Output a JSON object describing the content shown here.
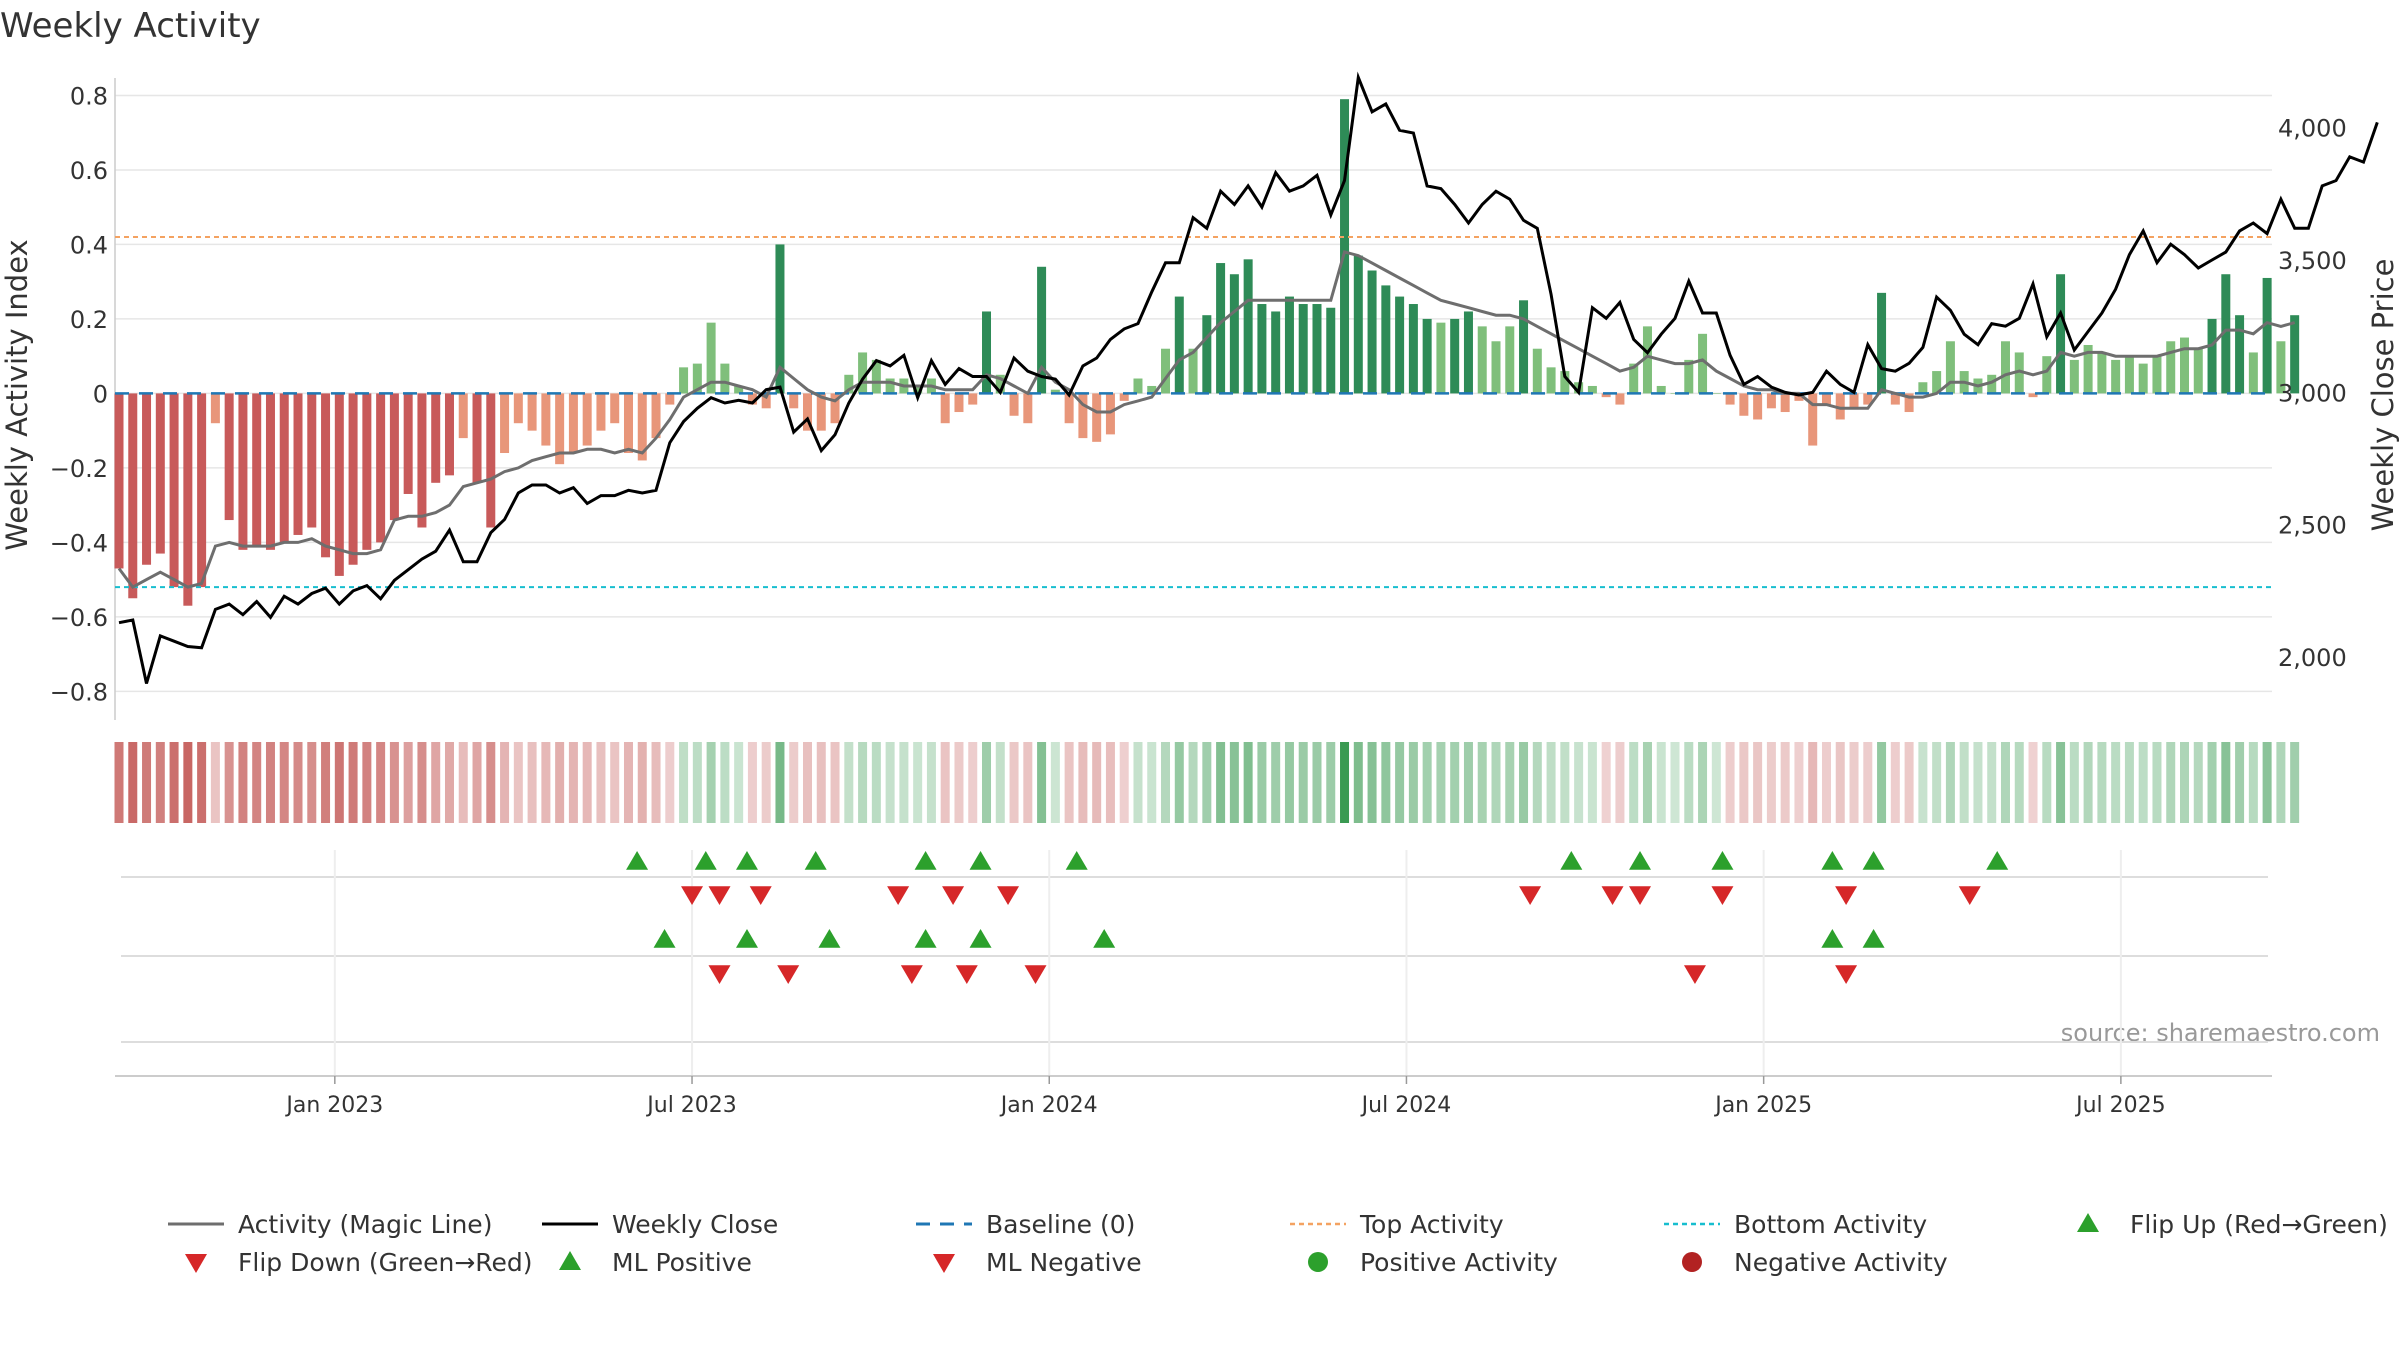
{
  "chart_data": {
    "type": "bar",
    "title": "Weekly Activity",
    "ylabel": "Weekly Activity Index",
    "y2label": "Weekly Close Price",
    "ylim": [
      -0.85,
      0.82
    ],
    "y2lim": [
      1800,
      4150
    ],
    "yticks": [
      0.8,
      0.6,
      0.4,
      0.2,
      0,
      -0.2,
      -0.4,
      -0.6,
      -0.8
    ],
    "ytick_labels": [
      "0.8",
      "0.6",
      "0.4",
      "0.2",
      "0",
      "−0.2",
      "−0.4",
      "−0.6",
      "−0.8"
    ],
    "y2ticks": [
      4000,
      3500,
      3000,
      2500,
      2000
    ],
    "y2tick_labels": [
      "4,000",
      "3,500",
      "3,000",
      "2,500",
      "2,000"
    ],
    "x_range_weeks": [
      0,
      157
    ],
    "x_ticks": [
      {
        "label": "Jan 2023",
        "week": 16
      },
      {
        "label": "Jul 2023",
        "week": 42
      },
      {
        "label": "Jan 2024",
        "week": 68
      },
      {
        "label": "Jul 2024",
        "week": 94
      },
      {
        "label": "Jan 2025",
        "week": 120
      },
      {
        "label": "Jul 2025",
        "week": 146
      }
    ],
    "top_activity": 0.42,
    "bottom_activity": -0.52,
    "baseline": 0,
    "series": [
      {
        "name": "Weekly Activity Index",
        "kind": "bar",
        "values": [
          -0.47,
          -0.55,
          -0.46,
          -0.43,
          -0.52,
          -0.57,
          -0.52,
          -0.08,
          -0.34,
          -0.42,
          -0.41,
          -0.42,
          -0.4,
          -0.38,
          -0.36,
          -0.44,
          -0.49,
          -0.46,
          -0.42,
          -0.4,
          -0.34,
          -0.27,
          -0.36,
          -0.24,
          -0.22,
          -0.12,
          -0.24,
          -0.36,
          -0.16,
          -0.08,
          -0.1,
          -0.14,
          -0.19,
          -0.16,
          -0.14,
          -0.1,
          -0.08,
          -0.16,
          -0.18,
          -0.12,
          -0.03,
          0.07,
          0.08,
          0.19,
          0.08,
          0.02,
          -0.03,
          -0.04,
          0.4,
          -0.04,
          -0.1,
          -0.1,
          -0.08,
          0.05,
          0.11,
          0.09,
          0.04,
          0.04,
          0.02,
          0.04,
          -0.08,
          -0.05,
          -0.03,
          0.22,
          0.05,
          -0.06,
          -0.08,
          0.34,
          0.01,
          -0.08,
          -0.12,
          -0.13,
          -0.11,
          -0.02,
          0.04,
          0.02,
          0.12,
          0.26,
          0.12,
          0.21,
          0.35,
          0.32,
          0.36,
          0.24,
          0.22,
          0.26,
          0.24,
          0.24,
          0.23,
          0.79,
          0.37,
          0.33,
          0.29,
          0.26,
          0.24,
          0.2,
          0.19,
          0.2,
          0.22,
          0.18,
          0.14,
          0.18,
          0.25,
          0.12,
          0.07,
          0.06,
          0.03,
          0.02,
          -0.01,
          -0.03,
          0.08,
          0.18,
          0.02,
          0.0,
          0.09,
          0.16,
          0.0,
          -0.03,
          -0.06,
          -0.07,
          -0.04,
          -0.05,
          -0.02,
          -0.14,
          -0.03,
          -0.07,
          -0.04,
          -0.03,
          0.27,
          -0.03,
          -0.05,
          0.03,
          0.06,
          0.14,
          0.06,
          0.04,
          0.05,
          0.14,
          0.11,
          -0.01,
          0.1,
          0.32,
          0.09,
          0.13,
          0.11,
          0.09,
          0.1,
          0.08,
          0.1,
          0.14,
          0.15,
          0.12,
          0.2,
          0.32,
          0.21,
          0.11,
          0.31,
          0.14,
          0.21
        ]
      },
      {
        "name": "Activity (Magic Line)",
        "kind": "line",
        "color": "#6e6e6e",
        "values": [
          -0.47,
          -0.52,
          -0.5,
          -0.48,
          -0.5,
          -0.52,
          -0.51,
          -0.41,
          -0.4,
          -0.41,
          -0.41,
          -0.41,
          -0.4,
          -0.4,
          -0.39,
          -0.41,
          -0.42,
          -0.43,
          -0.43,
          -0.42,
          -0.34,
          -0.33,
          -0.33,
          -0.32,
          -0.3,
          -0.25,
          -0.24,
          -0.23,
          -0.21,
          -0.2,
          -0.18,
          -0.17,
          -0.16,
          -0.16,
          -0.15,
          -0.15,
          -0.16,
          -0.15,
          -0.16,
          -0.12,
          -0.07,
          -0.01,
          0.01,
          0.03,
          0.03,
          0.02,
          0.01,
          -0.01,
          0.07,
          0.04,
          0.01,
          -0.01,
          -0.02,
          0.01,
          0.03,
          0.03,
          0.03,
          0.02,
          0.02,
          0.02,
          0.01,
          0.01,
          0.01,
          0.05,
          0.04,
          0.02,
          0.0,
          0.07,
          0.03,
          0.01,
          -0.03,
          -0.05,
          -0.05,
          -0.03,
          -0.02,
          -0.01,
          0.04,
          0.09,
          0.11,
          0.15,
          0.19,
          0.22,
          0.25,
          0.25,
          0.25,
          0.25,
          0.25,
          0.25,
          0.25,
          0.38,
          0.37,
          0.35,
          0.33,
          0.31,
          0.29,
          0.27,
          0.25,
          0.24,
          0.23,
          0.22,
          0.21,
          0.21,
          0.2,
          0.18,
          0.16,
          0.14,
          0.12,
          0.1,
          0.08,
          0.06,
          0.07,
          0.1,
          0.09,
          0.08,
          0.08,
          0.09,
          0.06,
          0.04,
          0.02,
          0.01,
          0.01,
          0.0,
          0.0,
          -0.03,
          -0.03,
          -0.04,
          -0.04,
          -0.04,
          0.01,
          0.0,
          -0.01,
          -0.01,
          0.0,
          0.03,
          0.03,
          0.02,
          0.03,
          0.05,
          0.06,
          0.05,
          0.06,
          0.11,
          0.1,
          0.11,
          0.11,
          0.1,
          0.1,
          0.1,
          0.1,
          0.11,
          0.12,
          0.12,
          0.13,
          0.17,
          0.17,
          0.16,
          0.19,
          0.18,
          0.19
        ]
      },
      {
        "name": "Weekly Close",
        "kind": "line",
        "axis": "y2",
        "color": "#000000",
        "values": [
          2130,
          2140,
          1900,
          2080,
          2060,
          2040,
          2035,
          2180,
          2200,
          2160,
          2210,
          2150,
          2230,
          2200,
          2240,
          2260,
          2200,
          2250,
          2270,
          2220,
          2290,
          2330,
          2370,
          2400,
          2480,
          2360,
          2360,
          2470,
          2520,
          2620,
          2650,
          2650,
          2620,
          2640,
          2580,
          2610,
          2610,
          2630,
          2620,
          2630,
          2810,
          2890,
          2940,
          2980,
          2960,
          2970,
          2960,
          3010,
          3020,
          2850,
          2900,
          2780,
          2840,
          2960,
          3050,
          3120,
          3100,
          3140,
          2980,
          3120,
          3030,
          3090,
          3060,
          3060,
          3000,
          3130,
          3080,
          3060,
          3050,
          2990,
          3100,
          3130,
          3200,
          3240,
          3260,
          3380,
          3490,
          3490,
          3660,
          3620,
          3760,
          3710,
          3780,
          3700,
          3830,
          3760,
          3780,
          3820,
          3670,
          3800,
          4190,
          4060,
          4090,
          3990,
          3980,
          3780,
          3770,
          3710,
          3640,
          3710,
          3760,
          3730,
          3650,
          3620,
          3370,
          3060,
          3000,
          3320,
          3280,
          3340,
          3200,
          3150,
          3220,
          3280,
          3420,
          3300,
          3300,
          3140,
          3030,
          3060,
          3020,
          3000,
          2990,
          3000,
          3080,
          3030,
          3000,
          3180,
          3090,
          3080,
          3110,
          3170,
          3360,
          3310,
          3220,
          3180,
          3260,
          3250,
          3280,
          3410,
          3210,
          3300,
          3160,
          3230,
          3300,
          3390,
          3520,
          3610,
          3490,
          3560,
          3520,
          3470,
          3500,
          3530,
          3610,
          3640,
          3600,
          3730,
          3620,
          3620,
          3780,
          3800,
          3890,
          3870,
          4020
        ]
      }
    ],
    "strips": [
      {
        "name": "Flip Up (Red→Green)",
        "row": 0,
        "weeks": [
          38,
          43,
          46,
          51,
          59,
          63,
          70,
          106,
          111,
          117,
          125,
          128,
          137
        ]
      },
      {
        "name": "Flip Down (Green→Red)",
        "row": 1,
        "weeks": [
          42,
          44,
          47,
          57,
          61,
          65,
          103,
          109,
          111,
          117,
          126,
          135
        ]
      },
      {
        "name": "ML Positive",
        "row": 2,
        "weeks": [
          40,
          46,
          52,
          59,
          63,
          72,
          125,
          128
        ]
      },
      {
        "name": "ML Negative",
        "row": 3,
        "weeks": [
          44,
          49,
          58,
          62,
          67,
          115,
          126
        ]
      }
    ],
    "legend": [
      {
        "label": "Activity (Magic Line)",
        "marker": "line",
        "color": "#6e6e6e"
      },
      {
        "label": "Weekly Close",
        "marker": "line",
        "color": "#000000"
      },
      {
        "label": "Baseline (0)",
        "marker": "dashed-line",
        "color": "#1f77b4"
      },
      {
        "label": "Top Activity",
        "marker": "dotted-line",
        "color": "#f4a261"
      },
      {
        "label": "Bottom Activity",
        "marker": "dotted-line",
        "color": "#17becf"
      },
      {
        "label": "Flip Up (Red→Green)",
        "marker": "triangle-up",
        "color": "#2ca02c"
      },
      {
        "label": "Flip Down (Green→Red)",
        "marker": "triangle-down",
        "color": "#d62728"
      },
      {
        "label": "ML Positive",
        "marker": "triangle-up",
        "color": "#2ca02c"
      },
      {
        "label": "ML Negative",
        "marker": "triangle-down",
        "color": "#d62728"
      },
      {
        "label": "Positive Activity",
        "marker": "circle",
        "color": "#2ca02c"
      },
      {
        "label": "Negative Activity",
        "marker": "circle",
        "color": "#b22222"
      }
    ],
    "legend_position": "bottom",
    "source": "source: sharemaestro.com",
    "colors": {
      "pos_strong": "#2e8b57",
      "pos_light": "#7fbf7b",
      "neg_strong": "#c85a5a",
      "neg_light": "#e8967a",
      "grid": "#e6e6e6",
      "axis": "#cccccc"
    }
  }
}
